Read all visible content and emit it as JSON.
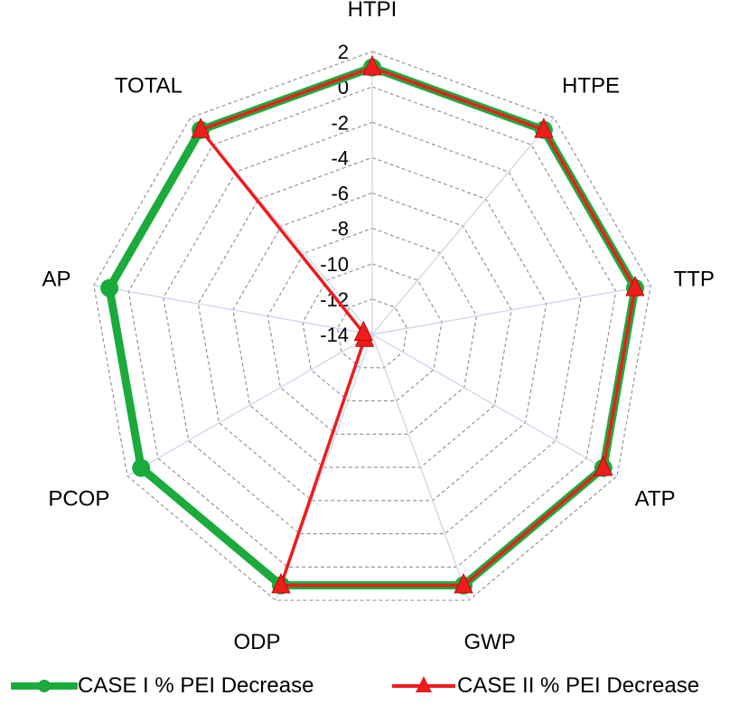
{
  "chart_data": {
    "type": "radar",
    "title": "",
    "categories": [
      "HTPI",
      "HTPE",
      "TTP",
      "ATP",
      "GWP",
      "ODP",
      "PCOP",
      "AP",
      "TOTAL"
    ],
    "rlim": [
      -14,
      2
    ],
    "ticks": [
      2,
      0,
      -2,
      -4,
      -6,
      -8,
      -10,
      -12,
      -14
    ],
    "tick_labels": [
      "2",
      "0",
      "-2",
      "-4",
      "-6",
      "-8",
      "-10",
      "-12",
      "-14"
    ],
    "grid": true,
    "legend_position": "bottom",
    "series": [
      {
        "name": "CASE I % PEI Decrease",
        "color": "#1aab3c",
        "marker": "circle",
        "values": [
          1.1,
          1.1,
          1.1,
          1.1,
          1.1,
          1.1,
          1.1,
          1.1,
          1.1
        ]
      },
      {
        "name": "CASE II % PEI Decrease",
        "color": "#ee1c1c",
        "marker": "triangle",
        "values": [
          1.1,
          1.1,
          1.1,
          1.1,
          1.1,
          1.1,
          -13.5,
          -13.5,
          1.1
        ]
      }
    ]
  }
}
